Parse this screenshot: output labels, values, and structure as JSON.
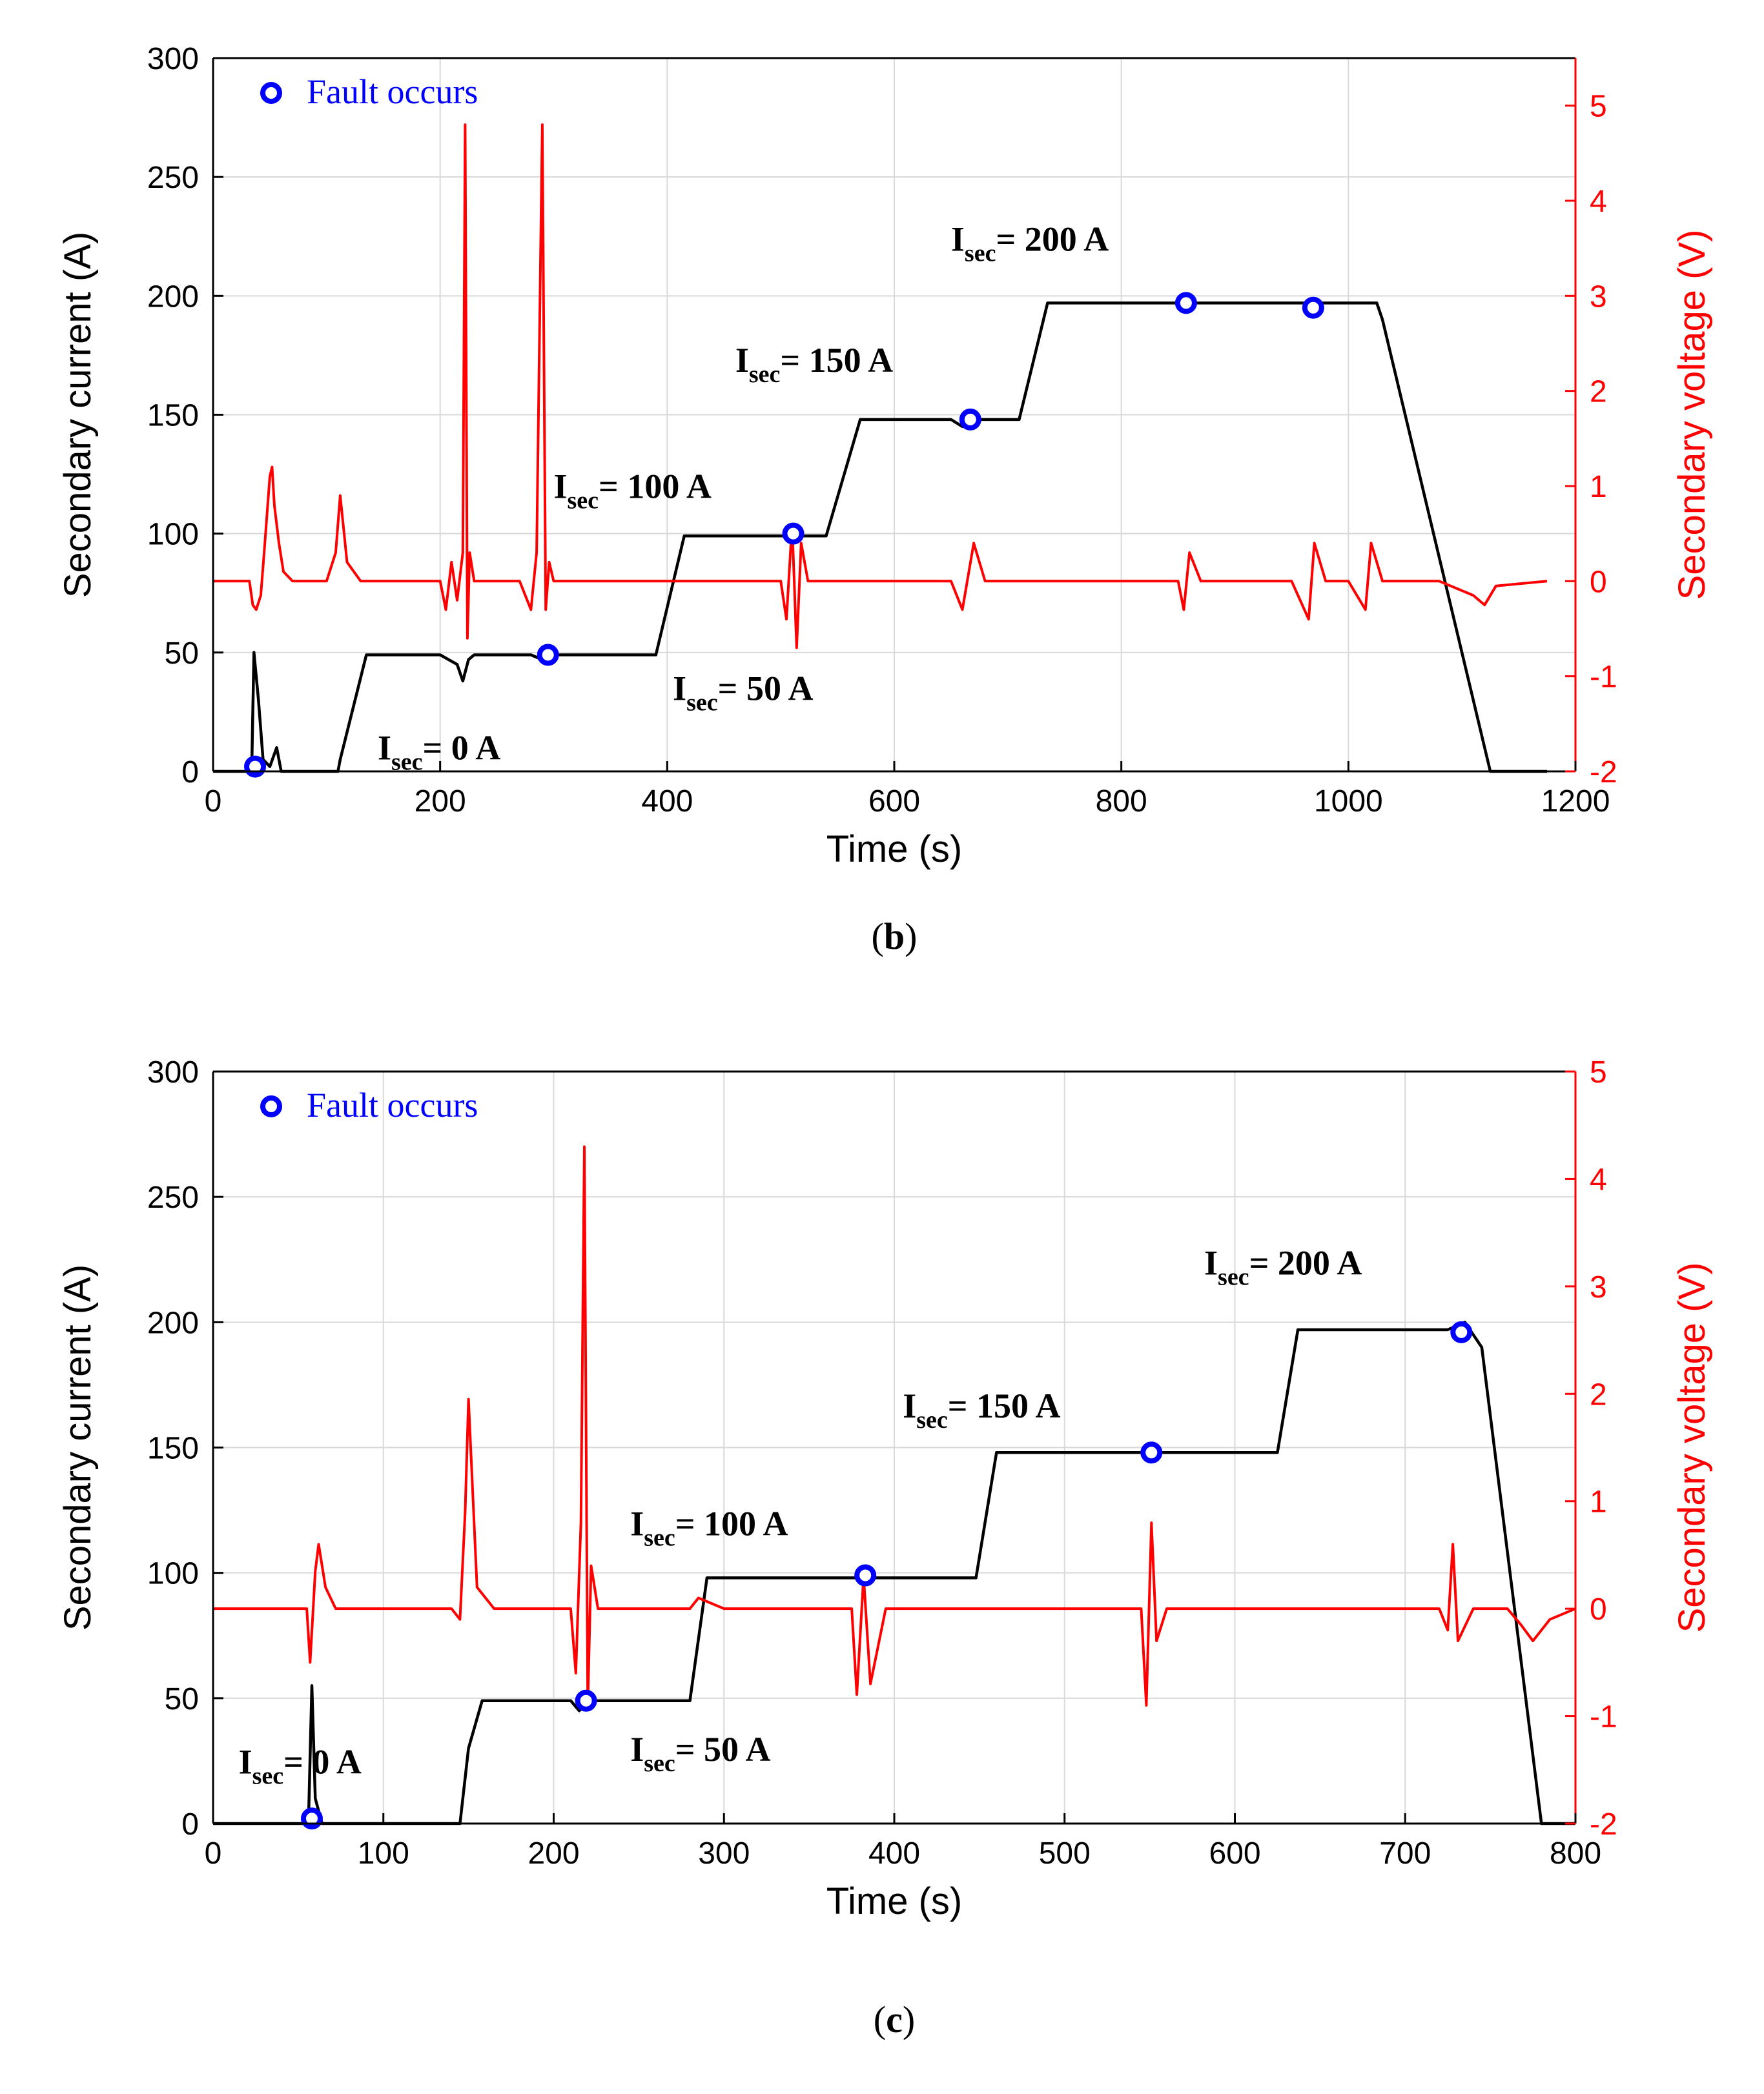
{
  "colors": {
    "current": "#000000",
    "voltage": "#ff0000",
    "fault": "#0000ff",
    "grid": "#d9d9d9"
  },
  "chart_data": [
    {
      "panel": "b",
      "caption_letter": "b",
      "type": "line",
      "xlabel": "Time (s)",
      "ylabel": "Secondary current (A)",
      "y2label": "Secondary voltage (V)",
      "xlim": [
        0,
        1200
      ],
      "ylim": [
        0,
        300
      ],
      "y2lim": [
        -2,
        5.5
      ],
      "xticks": [
        0,
        200,
        400,
        600,
        800,
        1000,
        1200
      ],
      "yticks": [
        0,
        50,
        100,
        150,
        200,
        250,
        300
      ],
      "y2ticks": [
        -2,
        -1,
        0,
        1,
        2,
        3,
        4,
        5
      ],
      "legend": "Fault occurs",
      "series": [
        {
          "name": "Secondary current",
          "axis": "left",
          "x": [
            0,
            34,
            36,
            40,
            44,
            50,
            56,
            60,
            80,
            110,
            112,
            135,
            200,
            215,
            220,
            225,
            230,
            280,
            290,
            295,
            300,
            390,
            415,
            540,
            570,
            650,
            660,
            665,
            670,
            675,
            680,
            710,
            735,
            1020,
            1025,
            1030,
            1125,
            1175
          ],
          "y": [
            0,
            0,
            50,
            30,
            5,
            2,
            10,
            0,
            0,
            0,
            5,
            49,
            49,
            45,
            38,
            47,
            49,
            49,
            47,
            49,
            49,
            49,
            99,
            99,
            148,
            148,
            145,
            150,
            148,
            148,
            148,
            148,
            197,
            197,
            197,
            190,
            0,
            0
          ]
        },
        {
          "name": "Secondary voltage",
          "axis": "right",
          "x": [
            0,
            32,
            35,
            38,
            42,
            45,
            50,
            52,
            54,
            58,
            62,
            70,
            100,
            108,
            112,
            118,
            130,
            200,
            205,
            210,
            215,
            220,
            222,
            224,
            226,
            230,
            270,
            280,
            285,
            290,
            293,
            296,
            300,
            310,
            350,
            380,
            420,
            500,
            505,
            510,
            514,
            518,
            524,
            600,
            650,
            660,
            670,
            680,
            700,
            850,
            855,
            860,
            870,
            950,
            965,
            970,
            980,
            1000,
            1015,
            1020,
            1030,
            1080,
            1110,
            1120,
            1130,
            1175
          ],
          "y": [
            0,
            0,
            -0.25,
            -0.3,
            -0.15,
            0.3,
            1.1,
            1.2,
            0.8,
            0.4,
            0.1,
            0,
            0,
            0.3,
            0.9,
            0.2,
            0,
            0,
            -0.3,
            0.2,
            -0.2,
            0.3,
            4.8,
            -0.6,
            0.3,
            0,
            0,
            -0.3,
            0.3,
            4.8,
            -0.3,
            0.2,
            0,
            0,
            0,
            0,
            0,
            0,
            -0.4,
            0.6,
            -0.7,
            0.4,
            0,
            0,
            0,
            -0.3,
            0.4,
            0,
            0,
            0,
            -0.3,
            0.3,
            0,
            0,
            -0.4,
            0.4,
            0,
            0,
            -0.3,
            0.4,
            0,
            0,
            -0.15,
            -0.25,
            -0.05,
            0
          ]
        }
      ],
      "faults": [
        {
          "x": 37,
          "y": 2
        },
        {
          "x": 295,
          "y": 49
        },
        {
          "x": 511,
          "y": 100
        },
        {
          "x": 667,
          "y": 148
        },
        {
          "x": 857,
          "y": 197
        },
        {
          "x": 969,
          "y": 195
        }
      ],
      "annotations": [
        {
          "text": "I",
          "sub": "sec",
          "rest": "= 0 A",
          "x": 145,
          "y": 5
        },
        {
          "text": "I",
          "sub": "sec",
          "rest": "= 50 A",
          "x": 405,
          "y": 30
        },
        {
          "text": "I",
          "sub": "sec",
          "rest": "= 100 A",
          "x": 300,
          "y": 115
        },
        {
          "text": "I",
          "sub": "sec",
          "rest": "= 150 A",
          "x": 460,
          "y": 168
        },
        {
          "text": "I",
          "sub": "sec",
          "rest": "= 200 A",
          "x": 650,
          "y": 219
        }
      ]
    },
    {
      "panel": "c",
      "caption_letter": "c",
      "type": "line",
      "xlabel": "Time (s)",
      "ylabel": "Secondary current (A)",
      "y2label": "Secondary voltage (V)",
      "xlim": [
        0,
        800
      ],
      "ylim": [
        0,
        300
      ],
      "y2lim": [
        -2,
        5
      ],
      "xticks": [
        0,
        100,
        200,
        300,
        400,
        500,
        600,
        700,
        800
      ],
      "yticks": [
        0,
        50,
        100,
        150,
        200,
        250,
        300
      ],
      "y2ticks": [
        -2,
        -1,
        0,
        1,
        2,
        3,
        4,
        5
      ],
      "legend": "Fault occurs",
      "series": [
        {
          "name": "Secondary current",
          "axis": "left",
          "x": [
            0,
            56,
            58,
            60,
            64,
            70,
            140,
            145,
            150,
            158,
            210,
            215,
            220,
            225,
            280,
            290,
            385,
            448,
            460,
            545,
            550,
            555,
            625,
            637,
            725,
            735,
            745,
            780,
            800
          ],
          "y": [
            0,
            0,
            55,
            10,
            0,
            0,
            0,
            0,
            30,
            49,
            49,
            45,
            49,
            49,
            49,
            98,
            98,
            98,
            148,
            148,
            150,
            148,
            148,
            197,
            197,
            200,
            190,
            0,
            0
          ]
        },
        {
          "name": "Secondary voltage",
          "axis": "right",
          "x": [
            0,
            55,
            57,
            60,
            62,
            66,
            72,
            140,
            145,
            148,
            150,
            155,
            165,
            210,
            213,
            216,
            218,
            220,
            222,
            226,
            240,
            280,
            285,
            300,
            375,
            378,
            382,
            386,
            395,
            450,
            545,
            548,
            551,
            554,
            560,
            720,
            725,
            728,
            731,
            740,
            760,
            768,
            775,
            785,
            800
          ],
          "y": [
            0,
            0,
            -0.5,
            0.35,
            0.6,
            0.2,
            0,
            0,
            -0.1,
            0.9,
            1.95,
            0.2,
            0,
            0,
            -0.6,
            0.8,
            4.3,
            -0.9,
            0.4,
            0,
            0,
            0,
            0.1,
            0,
            0,
            -0.8,
            0.3,
            -0.7,
            0,
            0,
            0,
            -0.9,
            0.8,
            -0.3,
            0,
            0,
            -0.2,
            0.6,
            -0.3,
            0,
            0,
            -0.15,
            -0.3,
            -0.1,
            0
          ]
        }
      ],
      "faults": [
        {
          "x": 58,
          "y": 2
        },
        {
          "x": 219,
          "y": 49
        },
        {
          "x": 383,
          "y": 99
        },
        {
          "x": 551,
          "y": 148
        },
        {
          "x": 733,
          "y": 196
        }
      ],
      "annotations": [
        {
          "text": "I",
          "sub": "sec",
          "rest": "= 0 A",
          "x": 15,
          "y": 20
        },
        {
          "text": "I",
          "sub": "sec",
          "rest": "= 50 A",
          "x": 245,
          "y": 25
        },
        {
          "text": "I",
          "sub": "sec",
          "rest": "= 100 A",
          "x": 245,
          "y": 115
        },
        {
          "text": "I",
          "sub": "sec",
          "rest": "= 150 A",
          "x": 405,
          "y": 162
        },
        {
          "text": "I",
          "sub": "sec",
          "rest": "= 200 A",
          "x": 582,
          "y": 219
        }
      ]
    }
  ]
}
